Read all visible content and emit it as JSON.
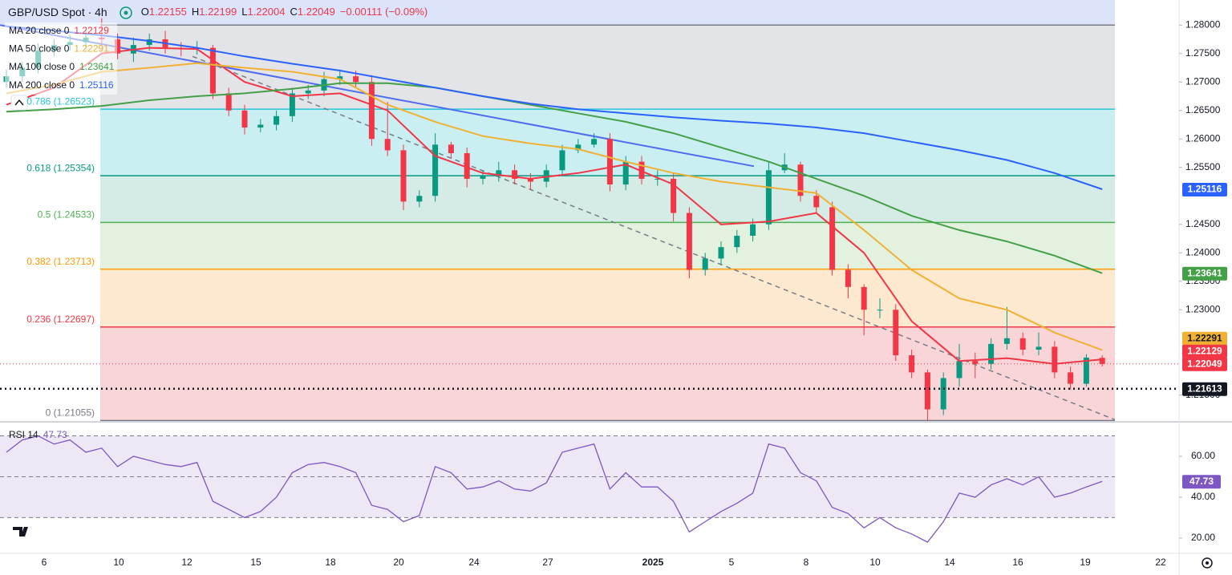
{
  "header": {
    "symbol": "GBP/USD Spot · 4h",
    "ohlc_labels": [
      "O",
      "H",
      "L",
      "C"
    ],
    "change": "−0.00111 (−0.09%)"
  },
  "chart_data": [
    {
      "type": "candlestick",
      "up_color": "#089981",
      "down_color": "#f23645",
      "x_labels": [
        "6",
        "10",
        "12",
        "15",
        "18",
        "20",
        "24",
        "27",
        "2025",
        "5",
        "8",
        "10",
        "14",
        "16",
        "19",
        "22"
      ],
      "open": [
        1.27,
        1.271,
        1.2725,
        1.2755,
        1.2765,
        1.277,
        1.2778,
        1.2775,
        1.275,
        1.2765,
        1.2775,
        1.276,
        1.2758,
        1.276,
        1.268,
        1.265,
        1.262,
        1.2625,
        1.264,
        1.268,
        1.2685,
        1.2705,
        1.271,
        1.27,
        1.26,
        1.258,
        1.249,
        1.25,
        1.259,
        1.2575,
        1.253,
        1.2535,
        1.2545,
        1.253,
        1.2525,
        1.2545,
        1.258,
        1.259,
        1.26,
        1.252,
        1.256,
        1.253,
        1.253,
        1.247,
        1.237,
        1.239,
        1.241,
        1.243,
        1.245,
        1.2545,
        1.2555,
        1.25,
        1.248,
        1.237,
        1.234,
        1.23,
        1.23,
        1.222,
        1.219,
        1.2125,
        1.218,
        1.221,
        1.2205,
        1.224,
        1.225,
        1.223,
        1.2235,
        1.219,
        1.217,
        1.22155
      ],
      "high": [
        1.2722,
        1.2735,
        1.2768,
        1.2775,
        1.2782,
        1.279,
        1.2812,
        1.2785,
        1.2778,
        1.2785,
        1.279,
        1.277,
        1.2772,
        1.2765,
        1.269,
        1.266,
        1.2635,
        1.265,
        1.269,
        1.2695,
        1.2718,
        1.2722,
        1.272,
        1.2712,
        1.2665,
        1.259,
        1.251,
        1.261,
        1.2595,
        1.2585,
        1.2545,
        1.256,
        1.2555,
        1.254,
        1.2555,
        1.259,
        1.26,
        1.261,
        1.261,
        1.257,
        1.257,
        1.2545,
        1.254,
        1.248,
        1.24,
        1.242,
        1.244,
        1.246,
        1.256,
        1.2575,
        1.256,
        1.251,
        1.249,
        1.238,
        1.2345,
        1.232,
        1.231,
        1.223,
        1.2195,
        1.219,
        1.224,
        1.2225,
        1.225,
        1.2305,
        1.226,
        1.226,
        1.2245,
        1.22,
        1.2222,
        1.22199
      ],
      "low": [
        1.269,
        1.27,
        1.2715,
        1.2745,
        1.2755,
        1.276,
        1.2765,
        1.274,
        1.2735,
        1.2755,
        1.275,
        1.2745,
        1.2748,
        1.267,
        1.264,
        1.2608,
        1.2612,
        1.2615,
        1.263,
        1.267,
        1.2675,
        1.2695,
        1.269,
        1.2588,
        1.257,
        1.2475,
        1.248,
        1.249,
        1.2565,
        1.2515,
        1.252,
        1.2525,
        1.252,
        1.251,
        1.2515,
        1.2535,
        1.2575,
        1.2585,
        1.2508,
        1.251,
        1.252,
        1.2518,
        1.2455,
        1.2355,
        1.236,
        1.238,
        1.24,
        1.242,
        1.244,
        1.254,
        1.249,
        1.247,
        1.236,
        1.232,
        1.2255,
        1.2285,
        1.221,
        1.218,
        1.2105,
        1.2115,
        1.2165,
        1.218,
        1.2195,
        1.223,
        1.222,
        1.222,
        1.218,
        1.216,
        1.2165,
        1.22004
      ],
      "close": [
        1.271,
        1.2725,
        1.2755,
        1.2765,
        1.277,
        1.2778,
        1.2775,
        1.275,
        1.2765,
        1.2775,
        1.276,
        1.2758,
        1.276,
        1.268,
        1.265,
        1.262,
        1.2625,
        1.264,
        1.268,
        1.2685,
        1.2705,
        1.271,
        1.27,
        1.26,
        1.258,
        1.249,
        1.25,
        1.259,
        1.2575,
        1.253,
        1.2535,
        1.2545,
        1.253,
        1.2525,
        1.2545,
        1.258,
        1.259,
        1.26,
        1.252,
        1.256,
        1.253,
        1.253,
        1.247,
        1.237,
        1.239,
        1.241,
        1.243,
        1.245,
        1.2545,
        1.2555,
        1.25,
        1.248,
        1.237,
        1.234,
        1.23,
        1.23,
        1.222,
        1.219,
        1.2125,
        1.218,
        1.221,
        1.2205,
        1.224,
        1.225,
        1.223,
        1.2235,
        1.219,
        1.217,
        1.2216,
        1.22049
      ],
      "ylim": [
        1.2106,
        1.2844
      ],
      "yticks": [
        {
          "value": 1.28,
          "label": "1.28000"
        },
        {
          "value": 1.275,
          "label": "1.27500"
        },
        {
          "value": 1.27,
          "label": "1.27000"
        },
        {
          "value": 1.265,
          "label": "1.26500"
        },
        {
          "value": 1.26,
          "label": "1.26000"
        },
        {
          "value": 1.255,
          "label": "1.25500"
        },
        {
          "value": 1.245,
          "label": "1.24500"
        },
        {
          "value": 1.24,
          "label": "1.24000"
        },
        {
          "value": 1.235,
          "label": "1.23500"
        },
        {
          "value": 1.23,
          "label": "1.23000"
        },
        {
          "value": 1.215,
          "label": "1.21500"
        }
      ],
      "ma_x": [
        0,
        3,
        6,
        9,
        12,
        15,
        18,
        21,
        24,
        27,
        30,
        33,
        36,
        39,
        42,
        45,
        48,
        51,
        54,
        57,
        60,
        63,
        66,
        69
      ],
      "series": [
        {
          "name": "MA 20 close 0",
          "color": "#f23645",
          "values": [
            1.266,
            1.269,
            1.275,
            1.276,
            1.2758,
            1.27,
            1.2675,
            1.268,
            1.265,
            1.257,
            1.254,
            1.253,
            1.254,
            1.2555,
            1.252,
            1.245,
            1.2455,
            1.247,
            1.24,
            1.228,
            1.221,
            1.2215,
            1.2205,
            1.22129
          ]
        },
        {
          "name": "MA 50 close 0",
          "color": "#f0b132",
          "values": [
            1.268,
            1.2695,
            1.2718,
            1.2725,
            1.2733,
            1.2725,
            1.2718,
            1.2705,
            1.266,
            1.263,
            1.2605,
            1.2592,
            1.2582,
            1.256,
            1.254,
            1.2525,
            1.2515,
            1.2505,
            1.244,
            1.237,
            1.232,
            1.23,
            1.226,
            1.22291
          ]
        },
        {
          "name": "MA 100 close 0",
          "color": "#43a047",
          "values": [
            1.2648,
            1.2652,
            1.2658,
            1.2668,
            1.2675,
            1.268,
            1.2688,
            1.2698,
            1.2698,
            1.269,
            1.2675,
            1.266,
            1.2645,
            1.263,
            1.261,
            1.2585,
            1.256,
            1.253,
            1.25,
            1.2465,
            1.244,
            1.242,
            1.2395,
            1.23641
          ]
        },
        {
          "name": "MA 200 close 0",
          "color": "#2962ff",
          "values": [
            1.2798,
            1.279,
            1.2782,
            1.2772,
            1.276,
            1.2745,
            1.2732,
            1.272,
            1.2705,
            1.269,
            1.2675,
            1.2662,
            1.2652,
            1.2645,
            1.2638,
            1.2632,
            1.2627,
            1.262,
            1.261,
            1.2595,
            1.258,
            1.2563,
            1.254,
            1.25116
          ]
        }
      ],
      "fib_high": {
        "value": 1.28,
        "color": "#787b86",
        "fill": "#e3e4e8"
      },
      "fib_levels": [
        {
          "label": "0.786 (1.26523)",
          "value": 1.26523,
          "color": "#26c6da",
          "fill": "#c9eff3"
        },
        {
          "label": "0.618 (1.25354)",
          "value": 1.25354,
          "color": "#089981",
          "fill": "#d5ece6"
        },
        {
          "label": "0.5 (1.24533)",
          "value": 1.24533,
          "color": "#4caf50",
          "fill": "#e3f1df"
        },
        {
          "label": "0.382 (1.23713)",
          "value": 1.23713,
          "color": "#ff9800",
          "fill": "#fde9cf"
        },
        {
          "label": "0.236 (1.22697)",
          "value": 1.22697,
          "color": "#f23645",
          "fill": "#f9d5d8"
        },
        {
          "label": "0 (1.21055)",
          "value": 1.21055,
          "color": "#787b86",
          "fill": "#ffffff"
        }
      ],
      "trendlines": [
        {
          "color": "#4f6cf0",
          "dashed": false,
          "values": [
            1.28,
            1.2552
          ]
        },
        {
          "color": "#787b86",
          "dashed": true,
          "values": [
            1.2745,
            1.2107
          ]
        }
      ],
      "hline": {
        "value": 1.21613,
        "color": "#131722"
      }
    },
    {
      "type": "line",
      "name": "RSI 14",
      "color": "#7e57c2",
      "values": [
        62,
        68,
        70,
        66,
        68,
        62,
        64,
        55,
        60,
        58,
        56,
        55,
        57,
        38,
        34,
        30,
        33,
        40,
        52,
        56,
        57,
        55,
        52,
        36,
        34,
        28,
        31,
        55,
        52,
        44,
        45,
        48,
        44,
        43,
        47,
        62,
        64,
        66,
        44,
        52,
        45,
        45,
        38,
        23,
        28,
        33,
        37,
        42,
        66,
        64,
        52,
        48,
        35,
        32,
        25,
        30,
        25,
        22,
        18,
        28,
        42,
        40,
        46,
        49,
        46,
        50,
        40,
        42,
        45,
        47.73
      ],
      "ylim": [
        12.5,
        76.5
      ],
      "yticks": [
        {
          "value": 60,
          "label": "60.00"
        },
        {
          "value": 40,
          "label": "40.00"
        },
        {
          "value": 20,
          "label": "20.00"
        }
      ],
      "levels": [
        70,
        50,
        30
      ],
      "band_fill": "#ede7f6"
    }
  ]
}
